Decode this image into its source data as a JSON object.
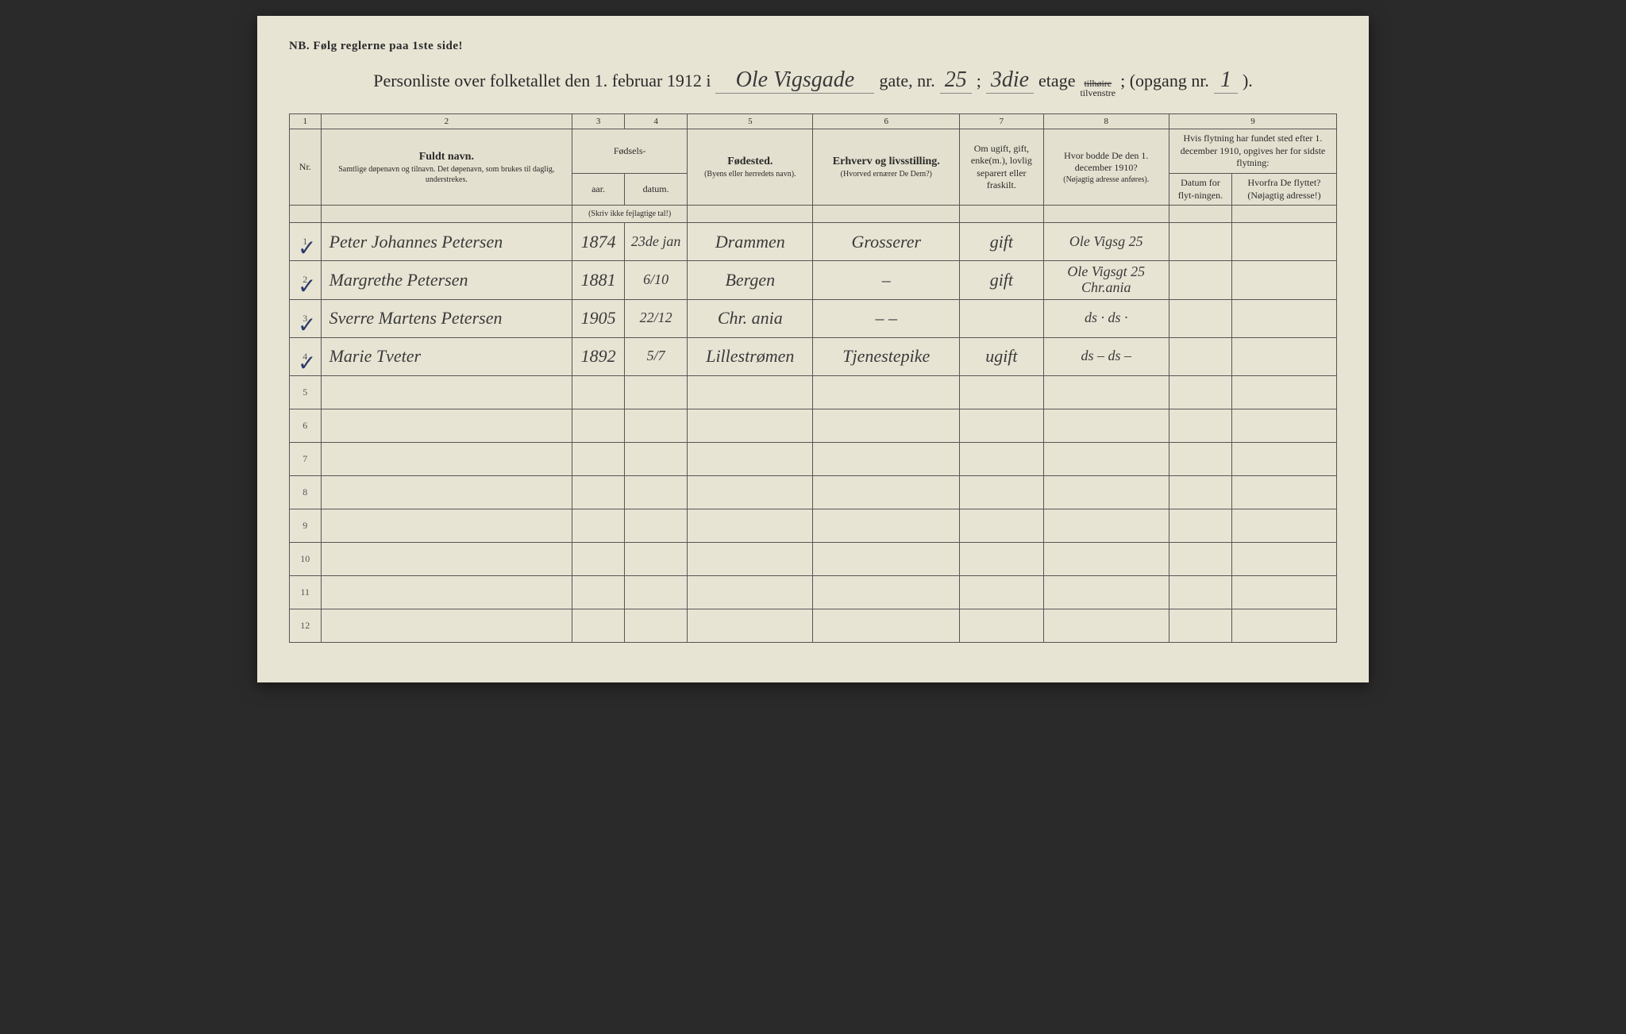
{
  "header": {
    "nb": "NB.   Følg reglerne paa 1ste side!",
    "title_prefix": "Personliste over folketallet den 1. februar 1912 i",
    "street_hw": "Ole Vigsgade",
    "gate_label": "gate, nr.",
    "gate_nr_hw": "25",
    "semicolon": ";",
    "etage_hw": "3die",
    "etage_label": "etage",
    "tilhoire_strike": "tilhøire",
    "tilvenstre": "tilvenstre",
    "opgang_label": "; (opgang nr.",
    "opgang_hw": "1",
    "close": ")."
  },
  "colnums": {
    "c1": "1",
    "c2": "2",
    "c3": "3",
    "c4": "4",
    "c5": "5",
    "c6": "6",
    "c7": "7",
    "c8": "8",
    "c9": "9"
  },
  "columns": {
    "nr": "Nr.",
    "name_head": "Fuldt navn.",
    "name_sub": "Samtlige døpenavn og tilnavn. Det døpenavn, som brukes til daglig, understrekes.",
    "fodsels": "Fødsels-",
    "aar": "aar.",
    "datum": "datum.",
    "fodsels_sub": "(Skriv ikke fejlagtige tal!)",
    "fodested": "Fødested.",
    "fodested_sub": "(Byens eller herredets navn).",
    "erhverv": "Erhverv og livsstilling.",
    "erhverv_sub": "(Hvorved ernærer De Dem?)",
    "marital": "Om ugift, gift, enke(m.), lovlig separert eller fraskilt.",
    "addr1910": "Hvor bodde De den 1. december 1910?",
    "addr1910_sub": "(Nøjagtig adresse anføres).",
    "flyt_head": "Hvis flytning har fundet sted efter 1. december 1910, opgives her for sidste flytning:",
    "flyt_datum": "Datum for flyt-ningen.",
    "flyt_fra": "Hvorfra De flyttet? (Nøjagtig adresse!)"
  },
  "rows": [
    {
      "nr": "1",
      "check": "✓",
      "name": "Peter Johannes Petersen",
      "year": "1874",
      "date": "23de jan",
      "place": "Drammen",
      "occ": "Grosserer",
      "marital": "gift",
      "addr": "Ole Vigsg 25",
      "flytd": "",
      "flytf": ""
    },
    {
      "nr": "2",
      "check": "✓",
      "name": "Margrethe Petersen",
      "year": "1881",
      "date": "6/10",
      "place": "Bergen",
      "occ": "–",
      "marital": "gift",
      "addr": "Ole Vigsgt 25 Chr.ania",
      "flytd": "",
      "flytf": ""
    },
    {
      "nr": "3",
      "check": "✓",
      "name": "Sverre Martens Petersen",
      "year": "1905",
      "date": "22/12",
      "place": "Chr. ania",
      "occ": "–   –",
      "marital": "",
      "addr": "ds · ds ·",
      "flytd": "",
      "flytf": ""
    },
    {
      "nr": "4",
      "check": "✓",
      "name": "Marie Tveter",
      "year": "1892",
      "date": "5/7",
      "place": "Lillestrømen",
      "occ": "Tjenestepike",
      "marital": "ugift",
      "addr": "ds – ds –",
      "flytd": "",
      "flytf": ""
    }
  ],
  "empty_rows": [
    "5",
    "6",
    "7",
    "8",
    "9",
    "10",
    "11",
    "12"
  ],
  "colors": {
    "paper": "#e8e4d4",
    "ink": "#2a2a2a",
    "handwriting": "#3a3a3a",
    "checkmark": "#2a3a6a",
    "border": "#555555"
  }
}
